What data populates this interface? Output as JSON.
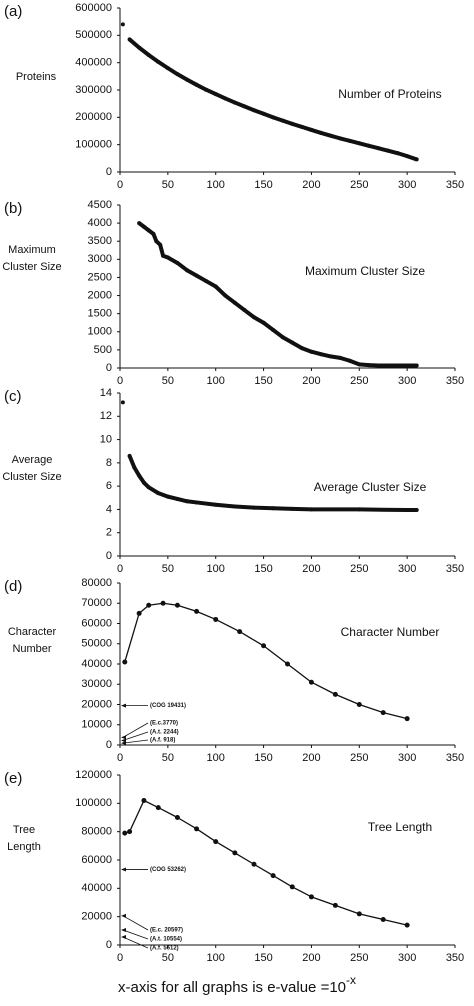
{
  "chart_data": [
    {
      "type": "line",
      "panel_label": "(a)",
      "title": "Number of Proteins",
      "ylabel": [
        "Proteins"
      ],
      "xlim": [
        0,
        350
      ],
      "xticks": [
        0,
        50,
        100,
        150,
        200,
        250,
        300,
        350
      ],
      "ylim": [
        0,
        600000
      ],
      "yticks": [
        0,
        100000,
        200000,
        300000,
        400000,
        500000,
        600000
      ],
      "series": [
        {
          "color": "#111111",
          "x": [
            3
          ],
          "values": [
            540000
          ]
        },
        {
          "color": "#111111",
          "x": [
            10,
            20,
            30,
            40,
            50,
            60,
            70,
            80,
            90,
            100,
            110,
            120,
            130,
            140,
            150,
            160,
            170,
            180,
            190,
            200,
            210,
            220,
            230,
            240,
            250,
            260,
            270,
            280,
            290,
            300,
            310
          ],
          "values": [
            485000,
            455000,
            428000,
            403000,
            380000,
            358000,
            338000,
            319000,
            301000,
            285000,
            269000,
            254000,
            240000,
            226000,
            213000,
            200000,
            188000,
            176000,
            165000,
            154000,
            143000,
            133000,
            123000,
            114000,
            105000,
            96000,
            87000,
            78000,
            69000,
            58000,
            46000
          ]
        }
      ]
    },
    {
      "type": "line",
      "panel_label": "(b)",
      "title": "Maximum Cluster Size",
      "ylabel": [
        "Maximum",
        "Cluster Size"
      ],
      "xlim": [
        0,
        350
      ],
      "xticks": [
        0,
        50,
        100,
        150,
        200,
        250,
        300,
        350
      ],
      "ylim": [
        0,
        4500
      ],
      "yticks": [
        0,
        500,
        1000,
        1500,
        2000,
        2500,
        3000,
        3500,
        4000,
        4500
      ],
      "series": [
        {
          "color": "#111111",
          "x": [
            20,
            25,
            30,
            35,
            38,
            42,
            45,
            50,
            60,
            70,
            80,
            90,
            100,
            110,
            120,
            130,
            140,
            150,
            160,
            170,
            180,
            190,
            200,
            210,
            220,
            230,
            240,
            250,
            260,
            270,
            280,
            300,
            310
          ],
          "values": [
            4000,
            3900,
            3800,
            3700,
            3500,
            3400,
            3100,
            3050,
            2900,
            2700,
            2550,
            2400,
            2250,
            2000,
            1800,
            1600,
            1400,
            1250,
            1050,
            850,
            700,
            550,
            450,
            380,
            320,
            280,
            200,
            100,
            80,
            70,
            70,
            70,
            70
          ]
        }
      ]
    },
    {
      "type": "line",
      "panel_label": "(c)",
      "title": "Average Cluster Size",
      "ylabel": [
        "Average",
        "Cluster Size"
      ],
      "xlim": [
        0,
        350
      ],
      "xticks": [
        0,
        50,
        100,
        150,
        200,
        250,
        300,
        350
      ],
      "ylim": [
        0,
        14
      ],
      "yticks": [
        0,
        2,
        4,
        6,
        8,
        10,
        12,
        14
      ],
      "series": [
        {
          "color": "#111111",
          "x": [
            3
          ],
          "values": [
            13.2
          ]
        },
        {
          "color": "#111111",
          "x": [
            10,
            15,
            20,
            25,
            30,
            40,
            50,
            60,
            70,
            80,
            100,
            120,
            140,
            160,
            180,
            200,
            250,
            300,
            310
          ],
          "values": [
            8.6,
            7.6,
            6.9,
            6.3,
            5.9,
            5.4,
            5.1,
            4.9,
            4.7,
            4.6,
            4.4,
            4.25,
            4.15,
            4.1,
            4.05,
            4.0,
            4.0,
            3.95,
            3.95
          ]
        }
      ]
    },
    {
      "type": "line",
      "panel_label": "(d)",
      "title": "Character Number",
      "ylabel": [
        "Character",
        "Number"
      ],
      "xlim": [
        0,
        350
      ],
      "xticks": [
        0,
        50,
        100,
        150,
        200,
        250,
        300,
        350
      ],
      "ylim": [
        0,
        80000
      ],
      "yticks": [
        0,
        10000,
        20000,
        30000,
        40000,
        50000,
        60000,
        70000,
        80000
      ],
      "annotations": [
        {
          "text": "(COG 19431)",
          "y": 19431
        },
        {
          "text": "(E.c.3770)",
          "y": 3770
        },
        {
          "text": "(A.t. 2244)",
          "y": 2244
        },
        {
          "text": "(A.f. 918)",
          "y": 918
        }
      ],
      "series": [
        {
          "color": "#111111",
          "x": [
            5,
            20,
            30,
            45,
            60,
            80,
            100,
            125,
            150,
            175,
            200,
            225,
            250,
            275,
            300
          ],
          "values": [
            41000,
            65000,
            69000,
            70000,
            69000,
            66000,
            62000,
            56000,
            49000,
            40000,
            31000,
            25000,
            20000,
            16000,
            13000
          ]
        }
      ]
    },
    {
      "type": "line",
      "panel_label": "(e)",
      "title": "Tree Length",
      "ylabel": [
        "Tree",
        "Length"
      ],
      "xlim": [
        0,
        350
      ],
      "xticks": [
        0,
        50,
        100,
        150,
        200,
        250,
        300,
        350
      ],
      "ylim": [
        0,
        120000
      ],
      "yticks": [
        0,
        20000,
        40000,
        60000,
        80000,
        100000,
        120000
      ],
      "annotations": [
        {
          "text": "(COG 53262)",
          "y": 53262
        },
        {
          "text": "(E.c. 20597)",
          "y": 20597
        },
        {
          "text": "(A.t. 10554)",
          "y": 10554
        },
        {
          "text": "(A.f. 5612)",
          "y": 5612
        }
      ],
      "series": [
        {
          "color": "#111111",
          "x": [
            5,
            10,
            25,
            40,
            60,
            80,
            100,
            120,
            140,
            160,
            180,
            200,
            225,
            250,
            275,
            300
          ],
          "values": [
            79000,
            80000,
            102000,
            97000,
            90000,
            82000,
            73000,
            65000,
            57000,
            49000,
            41000,
            34000,
            28000,
            22000,
            18000,
            14000
          ]
        }
      ]
    }
  ],
  "footer": {
    "text": "x-axis for all graphs is e-value =10",
    "superscript": "-x"
  }
}
